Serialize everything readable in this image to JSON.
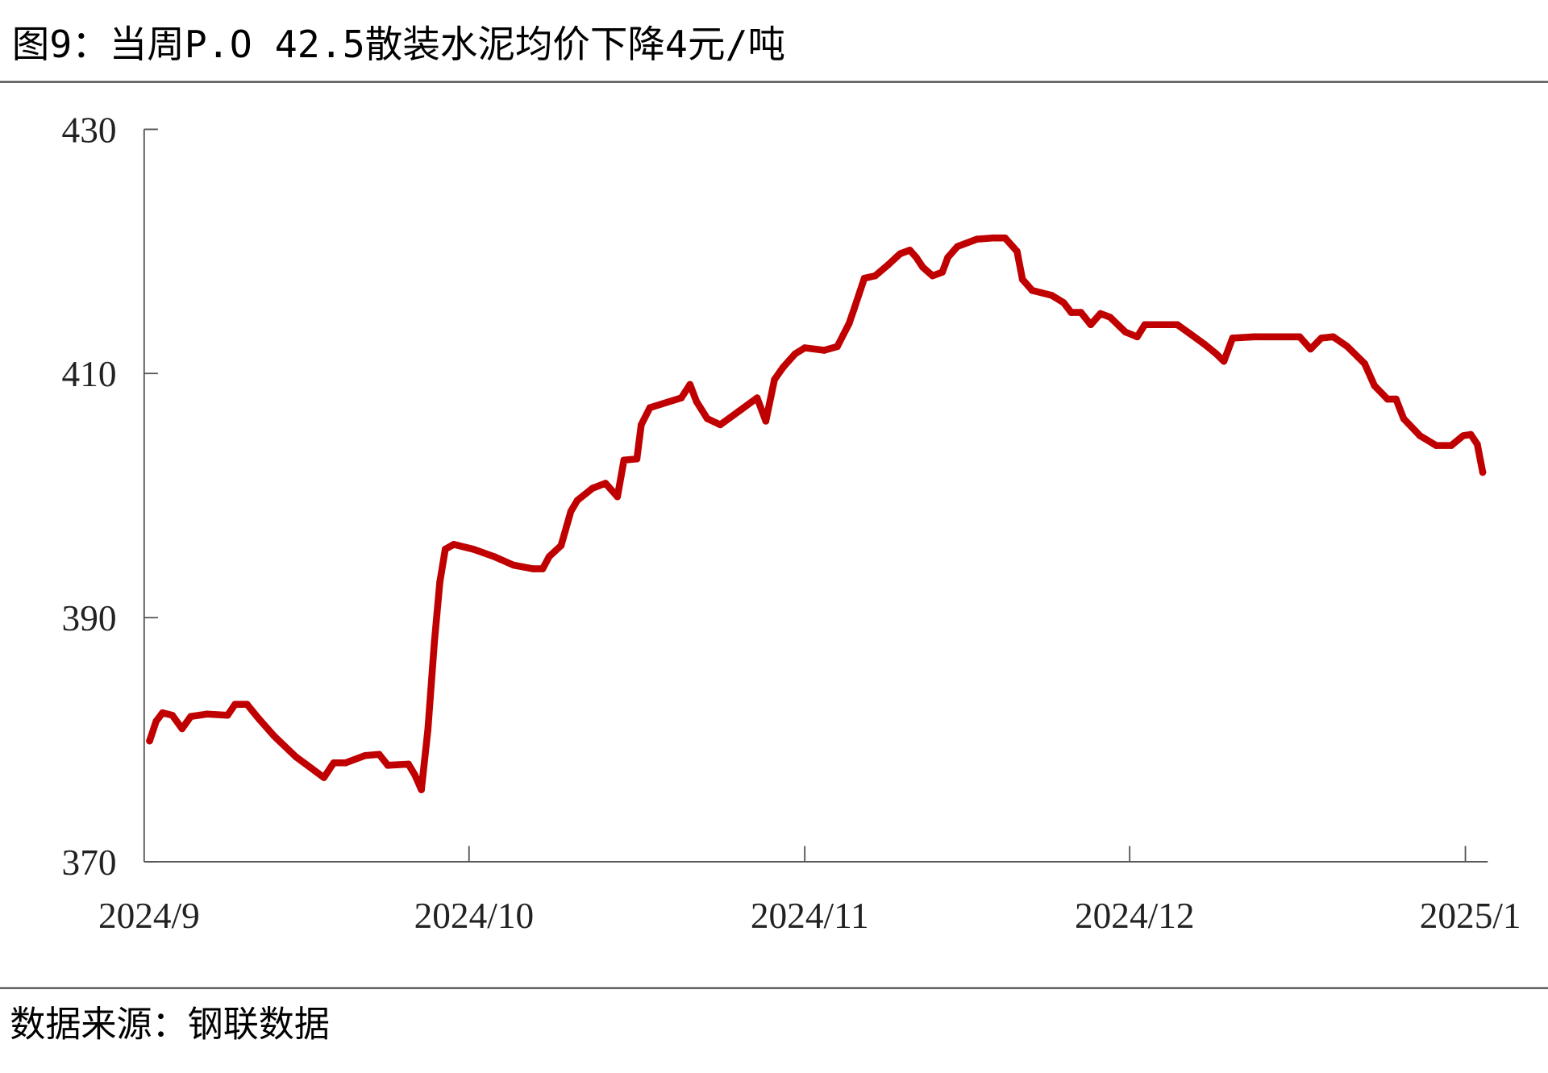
{
  "header": {
    "title": "图9：当周P.O 42.5散装水泥均价下降4元/吨"
  },
  "footer": {
    "source": "数据来源：钢联数据"
  },
  "chart_data": {
    "type": "line",
    "title": "图9：当周P.O 42.5散装水泥均价下降4元/吨",
    "xlabel": "",
    "ylabel": "",
    "x_unit": "days since 2024-09-01",
    "ylim": [
      370,
      430
    ],
    "xlim": [
      0,
      124
    ],
    "grid": false,
    "legend": "none",
    "color": "#C00000",
    "y_ticks": [
      {
        "value": 430,
        "label": "430"
      },
      {
        "value": 410,
        "label": "410"
      },
      {
        "value": 390,
        "label": "390"
      },
      {
        "value": 370,
        "label": "370"
      }
    ],
    "x_ticks": [
      {
        "value": 0,
        "label": "2024/9"
      },
      {
        "value": 30,
        "label": "2024/10"
      },
      {
        "value": 61,
        "label": "2024/11"
      },
      {
        "value": 91,
        "label": "2024/12"
      },
      {
        "value": 122,
        "label": "2025/1"
      }
    ],
    "series": [
      {
        "name": "P.O 42.5散装水泥均价",
        "x": [
          0.5,
          1.1,
          1.7,
          2.6,
          3.5,
          4.3,
          5.8,
          7.7,
          8.4,
          9.5,
          10.6,
          12.0,
          14.0,
          16.6,
          17.5,
          18.6,
          20.4,
          21.7,
          22.5,
          24.4,
          25.0,
          25.6,
          26.2,
          26.8,
          27.3,
          27.8,
          28.6,
          30.4,
          32.3,
          34.1,
          35.9,
          36.8,
          37.4,
          38.5,
          39.4,
          40.0,
          41.4,
          42.6,
          43.7,
          44.3,
          45.5,
          45.9,
          46.7,
          49.6,
          50.4,
          51.0,
          52.0,
          53.2,
          54.9,
          56.6,
          57.4,
          58.2,
          59.0,
          60.1,
          61.0,
          62.8,
          64.0,
          65.1,
          65.6,
          66.5,
          67.5,
          68.7,
          69.8,
          70.7,
          71.3,
          71.9,
          72.8,
          73.7,
          74.2,
          75.1,
          76.9,
          78.3,
          79.5,
          80.6,
          81.1,
          82.0,
          83.8,
          84.9,
          85.6,
          86.5,
          87.4,
          88.3,
          89.2,
          90.6,
          91.7,
          92.4,
          93.8,
          95.4,
          96.5,
          97.9,
          99.0,
          99.7,
          100.5,
          102.5,
          105.2,
          106.7,
          107.7,
          108.7,
          109.8,
          111.1,
          112.7,
          113.6,
          114.8,
          115.6,
          116.3,
          117.8,
          119.3,
          120.7,
          121.8,
          122.5,
          123.1,
          123.6
        ],
        "values": [
          379.9,
          381.5,
          382.2,
          382.0,
          380.9,
          381.9,
          382.1,
          382.0,
          382.9,
          382.9,
          381.7,
          380.3,
          378.6,
          376.9,
          378.1,
          378.1,
          378.7,
          378.8,
          377.9,
          378.0,
          377.1,
          375.9,
          380.8,
          388.0,
          392.9,
          395.6,
          396.0,
          395.6,
          395.0,
          394.3,
          394.0,
          394.0,
          395.0,
          395.9,
          398.7,
          399.6,
          400.6,
          401.0,
          399.9,
          402.9,
          403.0,
          405.8,
          407.2,
          408.0,
          409.1,
          407.7,
          406.3,
          405.8,
          406.9,
          408.0,
          406.1,
          409.5,
          410.5,
          411.6,
          412.1,
          411.9,
          412.2,
          414.1,
          415.4,
          417.8,
          418.0,
          418.9,
          419.8,
          420.1,
          419.5,
          418.7,
          418.0,
          418.3,
          419.5,
          420.4,
          421.0,
          421.1,
          421.1,
          420.0,
          417.7,
          416.8,
          416.4,
          415.8,
          415.0,
          415.0,
          414.0,
          414.9,
          414.6,
          413.4,
          413.0,
          414.0,
          414.0,
          414.0,
          413.3,
          412.4,
          411.6,
          411.0,
          412.9,
          413.0,
          413.0,
          413.0,
          412.0,
          412.9,
          413.0,
          412.2,
          410.8,
          409.0,
          407.9,
          407.9,
          406.3,
          404.9,
          404.1,
          404.1,
          404.9,
          405.0,
          404.2,
          401.9
        ]
      }
    ]
  }
}
